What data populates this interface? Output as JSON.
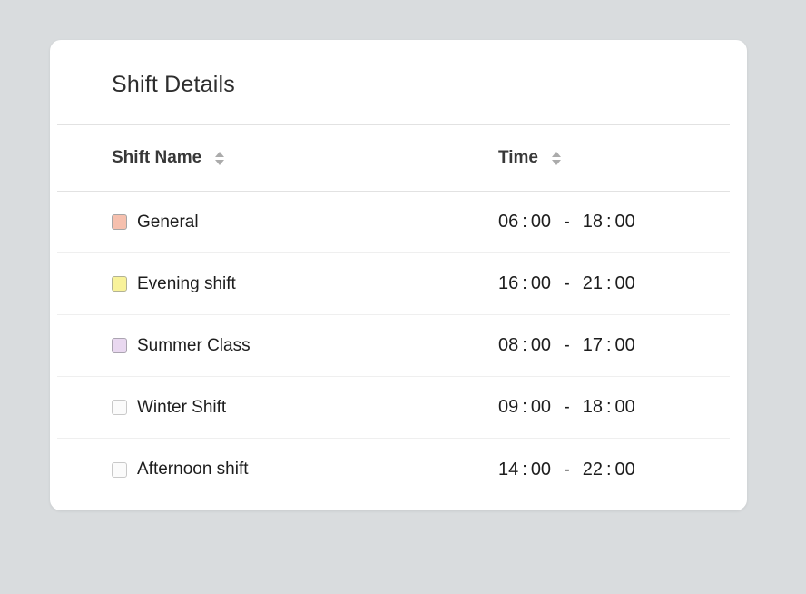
{
  "page": {
    "background_color": "#d9dcde"
  },
  "card": {
    "title": "Shift Details",
    "table": {
      "columns": [
        {
          "key": "name",
          "label": "Shift Name",
          "sortable": true
        },
        {
          "key": "time",
          "label": "Time",
          "sortable": true
        }
      ],
      "time_separator": "-",
      "rows": [
        {
          "name": "General",
          "swatch_color": "#f6c0ae",
          "swatch_border": "#a6a6a6",
          "start": "06:00",
          "end": "18:00"
        },
        {
          "name": "Evening shift",
          "swatch_color": "#f8f29a",
          "swatch_border": "#b2b295",
          "start": "16:00",
          "end": "21:00"
        },
        {
          "name": "Summer Class",
          "swatch_color": "#e9d8f0",
          "swatch_border": "#aba4b1",
          "start": "08:00",
          "end": "17:00"
        },
        {
          "name": "Winter Shift",
          "swatch_color": "#fbfbfb",
          "swatch_border": "#c9c9c9",
          "start": "09:00",
          "end": "18:00"
        },
        {
          "name": "Afternoon shift",
          "swatch_color": "#fbfbfb",
          "swatch_border": "#c9c9c9",
          "start": "14:00",
          "end": "22:00"
        }
      ]
    }
  }
}
